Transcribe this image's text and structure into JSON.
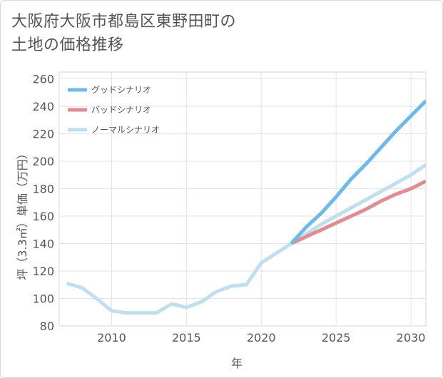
{
  "header": {
    "title_line1": "大阪府大阪市都島区東野田町の",
    "title_line2": "土地の価格推移"
  },
  "chart_data": {
    "type": "line",
    "xlabel": "年",
    "ylabel": "坪（3.3㎡）単価（万円）",
    "xlim": [
      2006.5,
      2031
    ],
    "ylim": [
      80,
      265
    ],
    "xticks": [
      2010,
      2015,
      2020,
      2025,
      2030
    ],
    "yticks": [
      80,
      100,
      120,
      140,
      160,
      180,
      200,
      220,
      240,
      260
    ],
    "grid": true,
    "legend_position": "top-left",
    "series": [
      {
        "name": "グッドシナリオ",
        "color": "#6cb9ea",
        "x": [
          2022,
          2023,
          2024,
          2025,
          2026,
          2027,
          2028,
          2029,
          2030,
          2031
        ],
        "y": [
          140,
          152,
          162,
          174,
          187,
          198,
          210,
          222,
          233,
          244
        ]
      },
      {
        "name": "バッドシナリオ",
        "color": "#e38b91",
        "x": [
          2022,
          2023,
          2024,
          2025,
          2026,
          2027,
          2028,
          2029,
          2030,
          2031
        ],
        "y": [
          140,
          145,
          150,
          155,
          160,
          165,
          171,
          176,
          180,
          185.5
        ]
      },
      {
        "name": "ノーマルシナリオ",
        "color": "#bfdff0",
        "x": [
          2007,
          2008,
          2009,
          2010,
          2011,
          2012,
          2013,
          2014,
          2015,
          2016,
          2017,
          2018,
          2019,
          2020,
          2021,
          2022,
          2023,
          2024,
          2025,
          2026,
          2027,
          2028,
          2029,
          2030,
          2031
        ],
        "y": [
          111,
          108,
          100,
          91,
          89.5,
          89.5,
          89.5,
          96,
          93.5,
          97.5,
          105,
          109,
          110,
          126,
          133,
          140,
          147,
          154,
          160,
          166,
          172,
          178,
          184,
          190,
          197.5
        ]
      }
    ]
  }
}
